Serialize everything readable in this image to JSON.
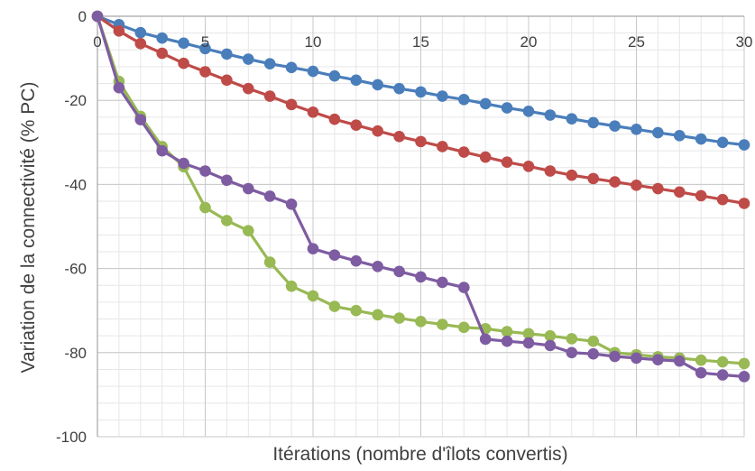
{
  "chart_data": {
    "type": "line",
    "title": "",
    "xlabel": "Itérations (nombre d'îlots convertis)",
    "ylabel": "Variation de la connectivité (% PC)",
    "xlim": [
      0,
      30
    ],
    "ylim": [
      -100,
      0
    ],
    "x_ticks": [
      0,
      5,
      10,
      15,
      20,
      25,
      30
    ],
    "y_ticks": [
      0,
      -20,
      -40,
      -60,
      -80,
      -100
    ],
    "x_tick_labels": [
      "0",
      "5",
      "10",
      "15",
      "20",
      "25",
      "30"
    ],
    "y_tick_labels": [
      "0",
      "-20",
      "-40",
      "-60",
      "-80",
      "-100"
    ],
    "grid": {
      "major": true,
      "minor": true
    },
    "legend": "none",
    "x": [
      0,
      1,
      2,
      3,
      4,
      5,
      6,
      7,
      8,
      9,
      10,
      11,
      12,
      13,
      14,
      15,
      16,
      17,
      18,
      19,
      20,
      21,
      22,
      23,
      24,
      25,
      26,
      27,
      28,
      29,
      30
    ],
    "series": [
      {
        "color": "#4a7ebb",
        "values": [
          0,
          -2,
          -3.9,
          -5.2,
          -6.4,
          -7.7,
          -9,
          -10.2,
          -11.3,
          -12.2,
          -13.1,
          -14.2,
          -15.2,
          -16.3,
          -17.2,
          -18,
          -19,
          -19.8,
          -20.8,
          -21.8,
          -22.6,
          -23.5,
          -24.4,
          -25.3,
          -26.1,
          -26.9,
          -27.7,
          -28.4,
          -29.2,
          -30,
          -30.6
        ]
      },
      {
        "color": "#be4b48",
        "values": [
          0,
          -3.5,
          -6.5,
          -8.8,
          -11.2,
          -13.2,
          -15.2,
          -17.2,
          -19,
          -21,
          -22.8,
          -24.5,
          -25.9,
          -27.3,
          -28.6,
          -29.8,
          -31,
          -32.3,
          -33.5,
          -34.7,
          -35.7,
          -36.8,
          -37.8,
          -38.6,
          -39.4,
          -40.2,
          -41,
          -41.8,
          -42.7,
          -43.6,
          -44.5
        ]
      },
      {
        "color": "#98b954",
        "values": [
          0,
          -15.5,
          -23.8,
          -31,
          -35.8,
          -45.5,
          -48.6,
          -51,
          -58.5,
          -64.2,
          -66.5,
          -69,
          -70,
          -71,
          -71.8,
          -72.6,
          -73.3,
          -74,
          -74.3,
          -75,
          -75.5,
          -76,
          -76.7,
          -77.3,
          -80,
          -80.5,
          -81,
          -81.3,
          -81.8,
          -82.2,
          -82.6
        ]
      },
      {
        "color": "#7e5ca1",
        "values": [
          0,
          -17,
          -24.6,
          -32,
          -35,
          -36.8,
          -39,
          -41,
          -42.8,
          -44.7,
          -55.3,
          -56.8,
          -58.2,
          -59.5,
          -60.7,
          -62,
          -63.3,
          -64.5,
          -76.8,
          -77.3,
          -77.7,
          -78.3,
          -80,
          -80.3,
          -80.9,
          -81.3,
          -81.7,
          -82,
          -84.8,
          -85.3,
          -85.7
        ]
      }
    ]
  }
}
